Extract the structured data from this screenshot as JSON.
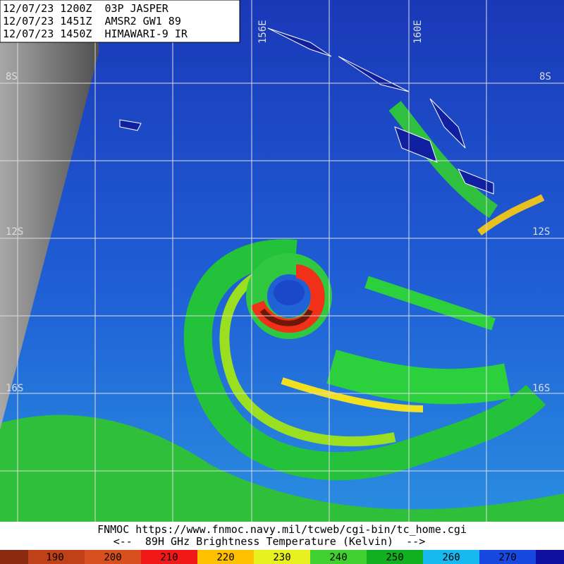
{
  "header": {
    "lines": [
      "12/07/23 1200Z  03P JASPER",
      "12/07/23 1451Z  AMSR2 GW1 89",
      "12/07/23 1450Z  HIMAWARI-9 IR"
    ]
  },
  "map": {
    "latitude_labels": [
      "8S",
      "12S",
      "16S"
    ],
    "longitude_labels": [
      "156E",
      "160E"
    ]
  },
  "footer": {
    "credit": "FNMOC https://www.fnmoc.navy.mil/tcweb/cgi-bin/tc_home.cgi",
    "caption": "<--  89H GHz Brightness Temperature (Kelvin)  -->"
  },
  "colorbar": {
    "labels": [
      "190",
      "200",
      "210",
      "220",
      "230",
      "240",
      "250",
      "260",
      "270"
    ]
  }
}
